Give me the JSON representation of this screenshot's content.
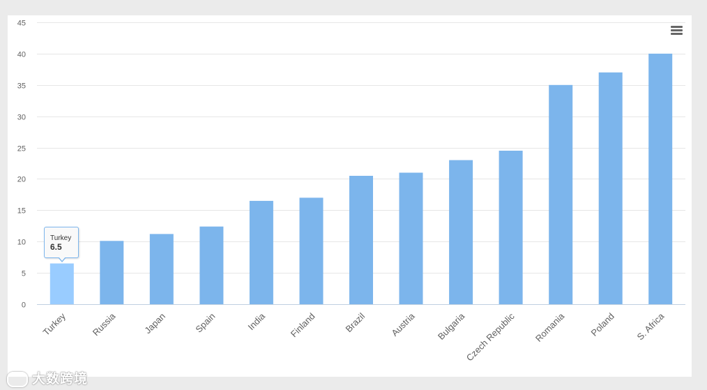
{
  "chart_data": {
    "type": "bar",
    "categories": [
      "Turkey",
      "Russia",
      "Japan",
      "Spain",
      "India",
      "Finland",
      "Brazil",
      "Austria",
      "Bulgaria",
      "Czech Republic",
      "Romania",
      "Poland",
      "S. Africa"
    ],
    "values": [
      6.5,
      10.1,
      11.2,
      12.4,
      16.5,
      17,
      20.5,
      21,
      23,
      24.5,
      35,
      37,
      40
    ],
    "title": "",
    "xlabel": "",
    "ylabel": "",
    "ylim": [
      0,
      45
    ],
    "yticks": [
      "0",
      "5",
      "10",
      "15",
      "20",
      "25",
      "30",
      "35",
      "40",
      "45"
    ],
    "grid": true,
    "bar_color": "#7cb5ec",
    "highlight_color": "#99ccff",
    "highlighted_index": 0
  },
  "tooltip": {
    "category": "Turkey",
    "value": "6.5"
  },
  "menu": {
    "icon": "hamburger-menu-icon"
  },
  "watermark": {
    "text": "大数跨境"
  }
}
